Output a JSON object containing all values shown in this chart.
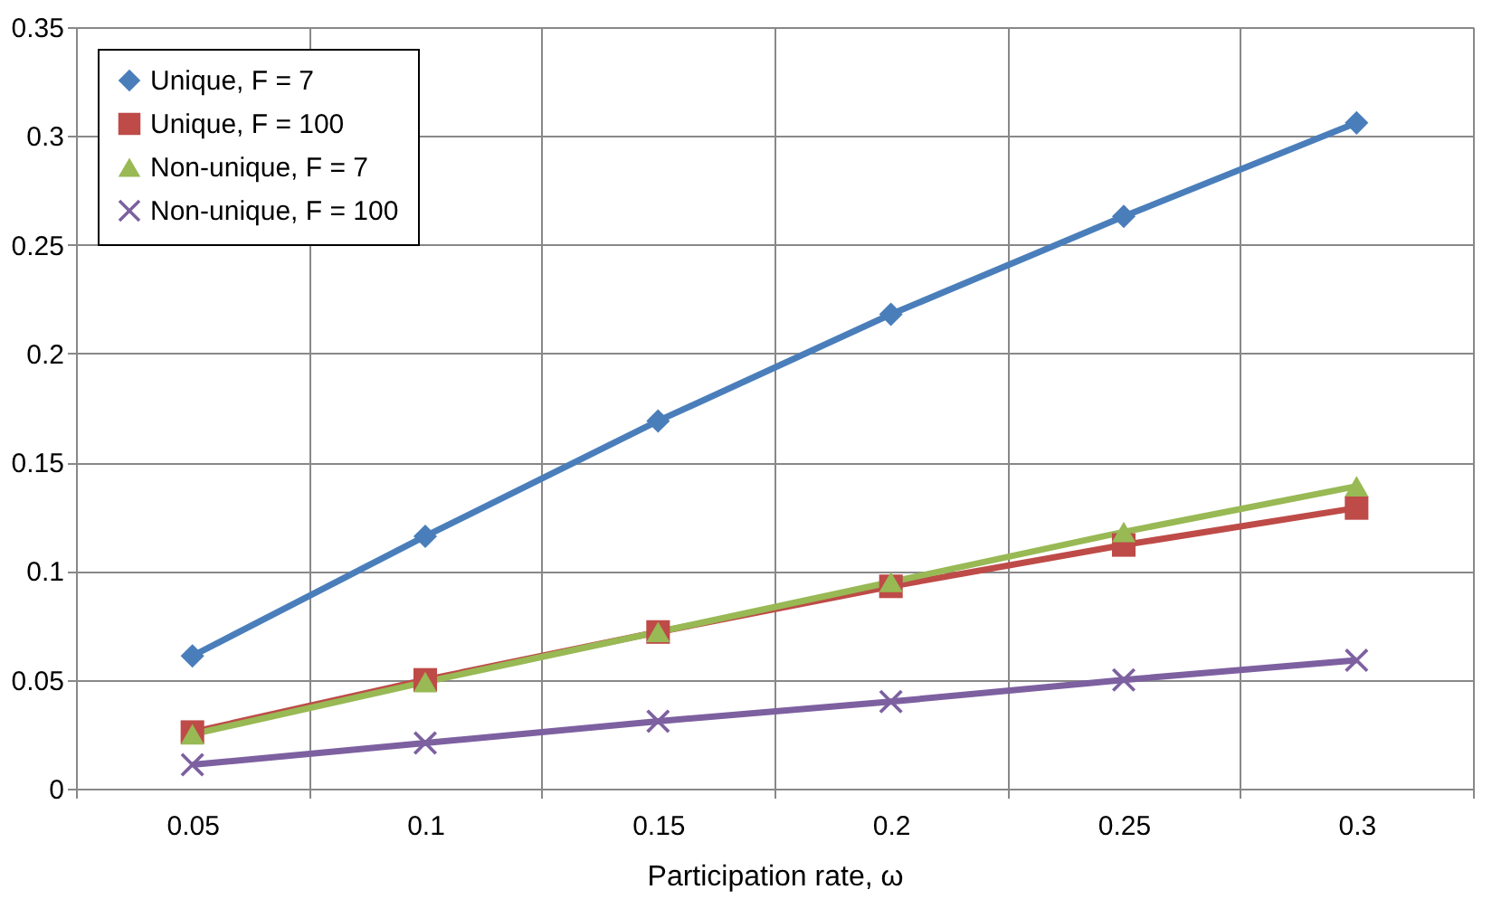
{
  "chart_data": {
    "type": "line",
    "xlabel": "Participation rate, ω",
    "categories": [
      "0.05",
      "0.1",
      "0.15",
      "0.2",
      "0.25",
      "0.3"
    ],
    "ylim": [
      0,
      0.35
    ],
    "yticks": [
      0,
      0.05,
      0.1,
      0.15,
      0.2,
      0.25,
      0.3,
      0.35
    ],
    "grid": true,
    "legend": "top left",
    "line_style": "solid",
    "series": [
      {
        "name": "Unique, F = 7",
        "color": "#4a7ebb",
        "marker": "diamond",
        "values": [
          0.061,
          0.116,
          0.169,
          0.218,
          0.263,
          0.306
        ]
      },
      {
        "name": "Unique, F = 100",
        "color": "#be4b48",
        "marker": "square",
        "values": [
          0.026,
          0.05,
          0.072,
          0.093,
          0.112,
          0.129
        ]
      },
      {
        "name": "Non-unique, F = 7",
        "color": "#98b954",
        "marker": "triangle",
        "values": [
          0.025,
          0.049,
          0.072,
          0.095,
          0.118,
          0.139
        ]
      },
      {
        "name": "Non-unique, F = 100",
        "color": "#7d60a0",
        "marker": "cross",
        "values": [
          0.011,
          0.021,
          0.031,
          0.04,
          0.05,
          0.059
        ]
      }
    ]
  }
}
